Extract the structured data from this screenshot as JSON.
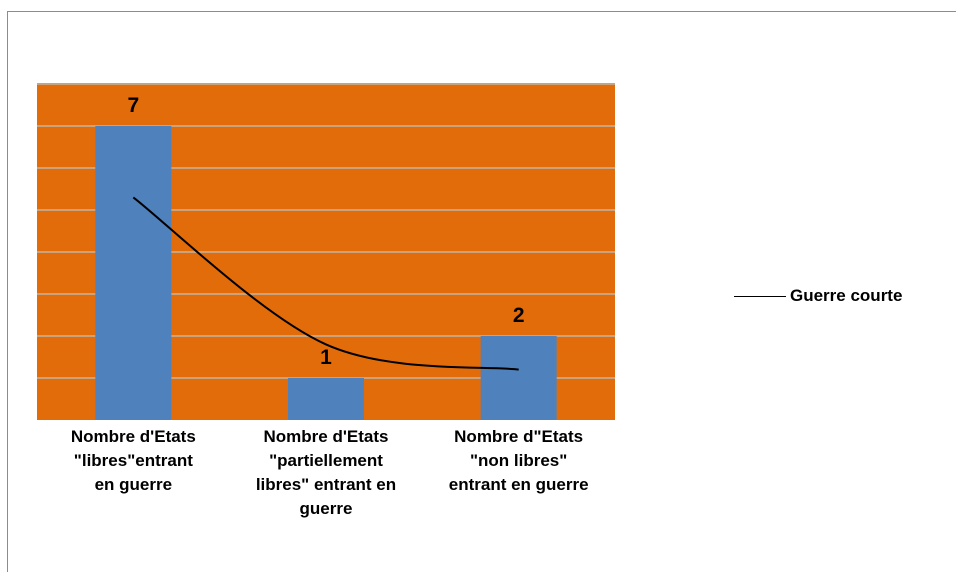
{
  "chart_data": {
    "type": "bar",
    "categories": [
      [
        "Nombre d'Etats",
        "\"libres\"entrant",
        "en guerre"
      ],
      [
        "Nombre d'Etats",
        "\"partiellement",
        "libres\" entrant en",
        "guerre"
      ],
      [
        "Nombre d\"Etats",
        "\"non libres\"",
        "entrant en guerre"
      ]
    ],
    "values": [
      7,
      1,
      2
    ],
    "data_labels": [
      "7",
      "1",
      "2"
    ],
    "ylim": [
      0,
      8
    ],
    "grid": true,
    "trend_series": {
      "name": "Guerre courte",
      "type": "line",
      "values": [
        5.3,
        1.8,
        1.2
      ]
    },
    "legend": {
      "position": "right",
      "label": "Guerre courte"
    },
    "colors": {
      "plot_bg": "#e36c0a",
      "bar": "#4f81bd",
      "grid": "#c9a27e",
      "line": "#000000"
    }
  }
}
